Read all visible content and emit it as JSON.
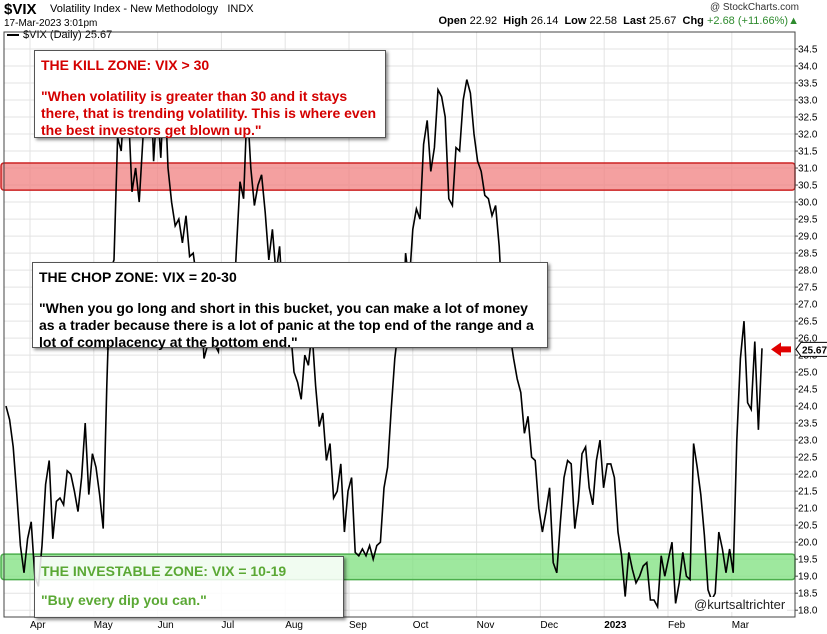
{
  "header": {
    "ticker": "$VIX",
    "name": "Volatility Index - New Methodology",
    "exchange": "INDX",
    "timestamp": "17-Mar-2023 3:01pm",
    "copyright": "@ StockCharts.com",
    "open_label": "Open",
    "open": "22.92",
    "high_label": "High",
    "high": "26.14",
    "low_label": "Low",
    "low": "22.58",
    "last_label": "Last",
    "last": "25.67",
    "chg_label": "Chg",
    "chg": "+2.68 (+11.66%)",
    "chg_marker": "▲"
  },
  "legend": {
    "label": "$VIX (Daily) 25.67"
  },
  "annotations": {
    "kill": {
      "title": "THE KILL ZONE: VIX > 30",
      "quote": "\"When volatility is greater than 30 and it stays there, that is trending volatility. This is where even the best investors get blown up.\""
    },
    "chop": {
      "title": "THE CHOP ZONE: VIX = 20-30",
      "quote": "\"When you go long and short in this bucket, you can make a lot of money as a trader because there is a lot of panic at the top end of the range and a lot of complacency at the bottom end.\""
    },
    "invest": {
      "title": "THE INVESTABLE ZONE:  VIX = 10-19",
      "quote": "\"Buy every dip you can.\""
    }
  },
  "credit": "@kurtsaltrichter",
  "colors": {
    "kill_band": "#f08080",
    "invest_band": "#7ee07e",
    "line": "#000000",
    "last_arrow": "#e00000",
    "kill_text": "#d40000",
    "invest_text": "#5aa834"
  },
  "chart_data": {
    "type": "line",
    "y_ticks": [
      18.0,
      18.5,
      19.0,
      19.5,
      20.0,
      20.5,
      21.0,
      21.5,
      22.0,
      22.5,
      23.0,
      23.5,
      24.0,
      24.5,
      25.0,
      25.5,
      26.0,
      26.5,
      27.0,
      27.5,
      28.0,
      28.5,
      29.0,
      29.5,
      30.0,
      30.5,
      31.0,
      31.5,
      32.0,
      32.5,
      33.0,
      33.5,
      34.0,
      34.5
    ],
    "ylim": [
      17.8,
      35.0
    ],
    "x_labels": [
      "Apr",
      "May",
      "Jun",
      "Jul",
      "Aug",
      "Sep",
      "Oct",
      "Nov",
      "Dec",
      "2023",
      "Feb",
      "Mar"
    ],
    "bands": [
      {
        "name": "kill",
        "from": 30.35,
        "to": 31.15
      },
      {
        "name": "invest",
        "from": 18.9,
        "to": 19.65
      }
    ],
    "last_value": "25.67",
    "series": [
      {
        "values": [
          24.0,
          23.6,
          22.8,
          21.4,
          19.9,
          19.1,
          20.1,
          20.6,
          19.0,
          18.7,
          19.9,
          21.7,
          22.4,
          20.1,
          21.2,
          21.3,
          21.1,
          22.1,
          22.0,
          21.5,
          20.9,
          21.9,
          23.5,
          21.4,
          22.6,
          22.2,
          21.4,
          20.4,
          24.6,
          28.0,
          28.3,
          31.9,
          31.5,
          33.3,
          32.7,
          30.3,
          31.0,
          30.0,
          31.8,
          33.5,
          34.3,
          31.2,
          32.9,
          31.3,
          33.7,
          31.0,
          30.0,
          29.3,
          29.5,
          28.8,
          29.6,
          28.4,
          28.5,
          27.7,
          27.3,
          25.4,
          25.8,
          26.2,
          25.8,
          25.6,
          27.5,
          27.2,
          27.0,
          26.5,
          28.6,
          30.6,
          30.1,
          32.9,
          31.0,
          29.9,
          30.5,
          30.8,
          29.7,
          28.3,
          29.2,
          27.9,
          28.7,
          26.9,
          25.8,
          26.3,
          25.0,
          24.7,
          24.2,
          25.5,
          25.2,
          26.2,
          24.6,
          23.4,
          23.8,
          22.4,
          22.9,
          21.3,
          21.5,
          22.3,
          20.3,
          21.5,
          21.9,
          19.7,
          19.6,
          19.8,
          19.6,
          19.9,
          19.5,
          19.9,
          20.0,
          21.6,
          22.2,
          23.9,
          25.4,
          26.3,
          25.9,
          28.5,
          27.6,
          29.2,
          29.8,
          29.5,
          31.7,
          32.4,
          30.9,
          31.6,
          33.3,
          33.1,
          32.5,
          30.1,
          29.9,
          31.6,
          31.5,
          33.0,
          33.6,
          33.2,
          32.0,
          31.2,
          30.9,
          30.2,
          30.1,
          29.6,
          29.9,
          28.7,
          26.7,
          25.8,
          26.1,
          25.4,
          24.8,
          24.4,
          23.2,
          23.7,
          22.5,
          22.4,
          21.0,
          20.3,
          20.9,
          21.6,
          19.4,
          19.1,
          20.6,
          21.9,
          22.4,
          22.3,
          20.4,
          21.2,
          22.6,
          22.8,
          21.6,
          21.1,
          22.4,
          23.0,
          21.6,
          22.3,
          22.3,
          21.9,
          20.3,
          19.6,
          18.4,
          19.7,
          19.2,
          18.8,
          19.0,
          19.3,
          19.4,
          18.3,
          18.3,
          18.1,
          19.6,
          19.0,
          19.5,
          20.0,
          18.2,
          18.8,
          19.7,
          19.0,
          18.9,
          22.9,
          22.2,
          21.4,
          20.2,
          18.6,
          18.3,
          18.5,
          20.3,
          19.8,
          19.1,
          19.8,
          19.1,
          23.0,
          25.4,
          26.5,
          24.1,
          23.9,
          25.9,
          23.3,
          25.7
        ]
      }
    ]
  }
}
